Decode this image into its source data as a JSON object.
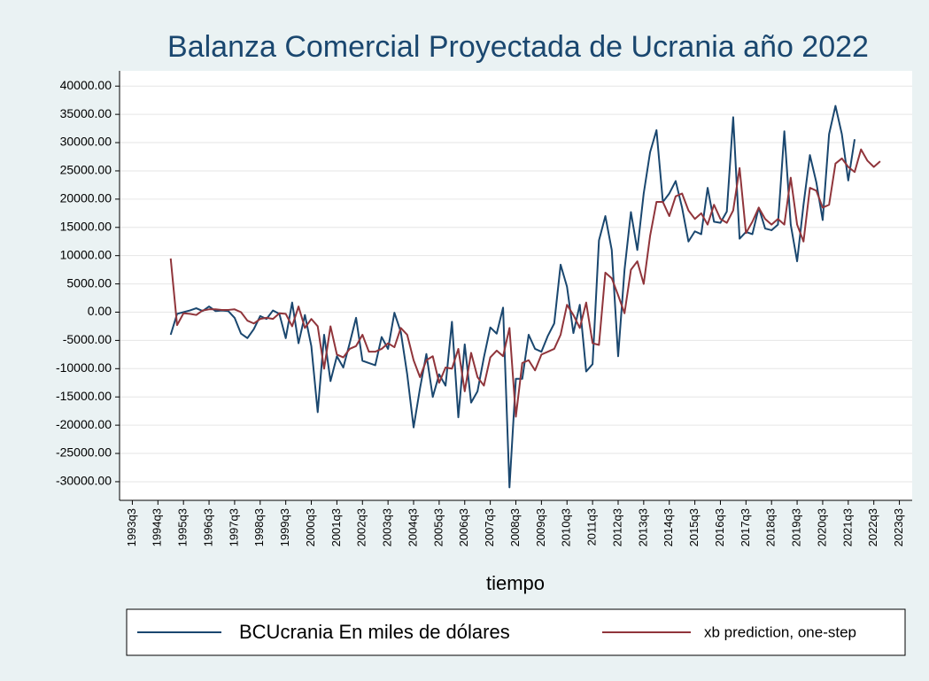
{
  "chart_data": {
    "type": "line",
    "title": "Balanza Comercial Proyectada de Ucrania año 2022",
    "x_label": "tiempo",
    "x": [
      "1995q1",
      "1995q2",
      "1995q3",
      "1995q4",
      "1996q1",
      "1996q2",
      "1996q3",
      "1996q4",
      "1997q1",
      "1997q2",
      "1997q3",
      "1997q4",
      "1998q1",
      "1998q2",
      "1998q3",
      "1998q4",
      "1999q1",
      "1999q2",
      "1999q3",
      "1999q4",
      "2000q1",
      "2000q2",
      "2000q3",
      "2000q4",
      "2001q1",
      "2001q2",
      "2001q3",
      "2001q4",
      "2002q1",
      "2002q2",
      "2002q3",
      "2002q4",
      "2003q1",
      "2003q2",
      "2003q3",
      "2003q4",
      "2004q1",
      "2004q2",
      "2004q3",
      "2004q4",
      "2005q1",
      "2005q2",
      "2005q3",
      "2005q4",
      "2006q1",
      "2006q2",
      "2006q3",
      "2006q4",
      "2007q1",
      "2007q2",
      "2007q3",
      "2007q4",
      "2008q1",
      "2008q2",
      "2008q3",
      "2008q4",
      "2009q1",
      "2009q2",
      "2009q3",
      "2009q4",
      "2010q1",
      "2010q2",
      "2010q3",
      "2010q4",
      "2011q1",
      "2011q2",
      "2011q3",
      "2011q4",
      "2012q1",
      "2012q2",
      "2012q3",
      "2012q4",
      "2013q1",
      "2013q2",
      "2013q3",
      "2013q4",
      "2014q1",
      "2014q2",
      "2014q3",
      "2014q4",
      "2015q1",
      "2015q2",
      "2015q3",
      "2015q4",
      "2016q1",
      "2016q2",
      "2016q3",
      "2016q4",
      "2017q1",
      "2017q2",
      "2017q3",
      "2017q4",
      "2018q1",
      "2018q2",
      "2018q3",
      "2018q4",
      "2019q1",
      "2019q2",
      "2019q3",
      "2019q4",
      "2020q1",
      "2020q2",
      "2020q3",
      "2020q4",
      "2021q1",
      "2021q2",
      "2021q3",
      "2021q4",
      "2022q1",
      "2022q2",
      "2022q3",
      "2022q4"
    ],
    "series": [
      {
        "name": "BCUcrania En miles de dólares",
        "color": "#1a476f",
        "values": [
          -4000,
          -300,
          0,
          300,
          700,
          200,
          1000,
          200,
          300,
          200,
          -1000,
          -3800,
          -4600,
          -3000,
          -700,
          -1200,
          300,
          -300,
          -4600,
          1700,
          -5500,
          -500,
          -6000,
          -17700,
          -4000,
          -12200,
          -7800,
          -9800,
          -5500,
          -1000,
          -8600,
          -9000,
          -9400,
          -4400,
          -6500,
          -100,
          -3500,
          -11000,
          -20400,
          -13500,
          -7400,
          -15000,
          -11000,
          -13000,
          -1700,
          -18600,
          -5700,
          -16000,
          -14000,
          -8000,
          -2700,
          -3800,
          800,
          -31000,
          -11800,
          -11800,
          -4000,
          -6500,
          -7000,
          -4200,
          -2000,
          8400,
          4500,
          -3700,
          1300,
          -10500,
          -9200,
          12700,
          17000,
          11000,
          -7800,
          7500,
          17700,
          11000,
          21000,
          28300,
          32200,
          19500,
          21000,
          23200,
          18500,
          12500,
          14300,
          13800,
          22000,
          16000,
          15800,
          17800,
          34500,
          13000,
          14200,
          13800,
          18500,
          14800,
          14500,
          15500,
          32000,
          15500,
          9000,
          19000,
          27800,
          23000,
          16300,
          31500,
          36500,
          31500,
          23300,
          30600,
          null,
          null,
          null,
          null
        ]
      },
      {
        "name": "xb prediction, one-step",
        "color": "#90353b",
        "values": [
          9500,
          -2300,
          -200,
          -300,
          -500,
          300,
          500,
          500,
          400,
          400,
          500,
          0,
          -1500,
          -2000,
          -1200,
          -1000,
          -1200,
          -200,
          -300,
          -2500,
          1000,
          -2800,
          -1200,
          -2500,
          -10000,
          -2500,
          -7500,
          -8000,
          -6500,
          -6000,
          -4000,
          -7000,
          -7000,
          -6500,
          -5500,
          -6200,
          -2800,
          -4000,
          -8500,
          -11500,
          -8500,
          -7800,
          -12500,
          -9800,
          -10000,
          -6500,
          -14000,
          -7200,
          -11500,
          -13000,
          -8000,
          -6800,
          -7800,
          -2800,
          -18500,
          -9000,
          -8500,
          -10300,
          -7500,
          -7000,
          -6500,
          -4000,
          1300,
          -500,
          -2800,
          1700,
          -5500,
          -5800,
          7000,
          6000,
          3000,
          -200,
          7500,
          9000,
          5000,
          13500,
          19500,
          19500,
          17000,
          20500,
          21000,
          18000,
          16500,
          17500,
          15500,
          19000,
          16500,
          15800,
          18000,
          25500,
          14000,
          16000,
          18500,
          16500,
          15500,
          16500,
          15500,
          23800,
          15500,
          12500,
          22000,
          21500,
          18500,
          19000,
          26300,
          27200,
          25700,
          24800,
          28800,
          26800,
          25700,
          26700
        ]
      }
    ],
    "xlim": [
      "1993q1",
      "2024q1"
    ],
    "xticks": [
      "1993q3",
      "1994q3",
      "1995q3",
      "1996q3",
      "1997q3",
      "1998q3",
      "1999q3",
      "2000q3",
      "2001q3",
      "2002q3",
      "2003q3",
      "2004q3",
      "2005q3",
      "2006q3",
      "2007q3",
      "2008q3",
      "2009q3",
      "2010q3",
      "2011q3",
      "2012q3",
      "2013q3",
      "2014q3",
      "2015q3",
      "2016q3",
      "2017q3",
      "2018q3",
      "2019q3",
      "2020q3",
      "2021q3",
      "2022q3",
      "2023q3"
    ],
    "ylim": [
      -33300,
      42700
    ],
    "yticks": [
      {
        "value": 40000,
        "label": "40000.00"
      },
      {
        "value": 35000,
        "label": "35000.00"
      },
      {
        "value": 30000,
        "label": "30000.00"
      },
      {
        "value": 25000,
        "label": "25000.00"
      },
      {
        "value": 20000,
        "label": "20000.00"
      },
      {
        "value": 15000,
        "label": "15000.00"
      },
      {
        "value": 10000,
        "label": "10000.00"
      },
      {
        "value": 5000,
        "label": "5000.00"
      },
      {
        "value": 0,
        "label": "0.00"
      },
      {
        "value": -5000,
        "label": "-5000.00"
      },
      {
        "value": -10000,
        "label": "-10000.00"
      },
      {
        "value": -15000,
        "label": "-15000.00"
      },
      {
        "value": -20000,
        "label": "-20000.00"
      },
      {
        "value": -25000,
        "label": "-25000.00"
      },
      {
        "value": -30000,
        "label": "-30000.00"
      }
    ],
    "grid": true,
    "legend": "bottom"
  }
}
